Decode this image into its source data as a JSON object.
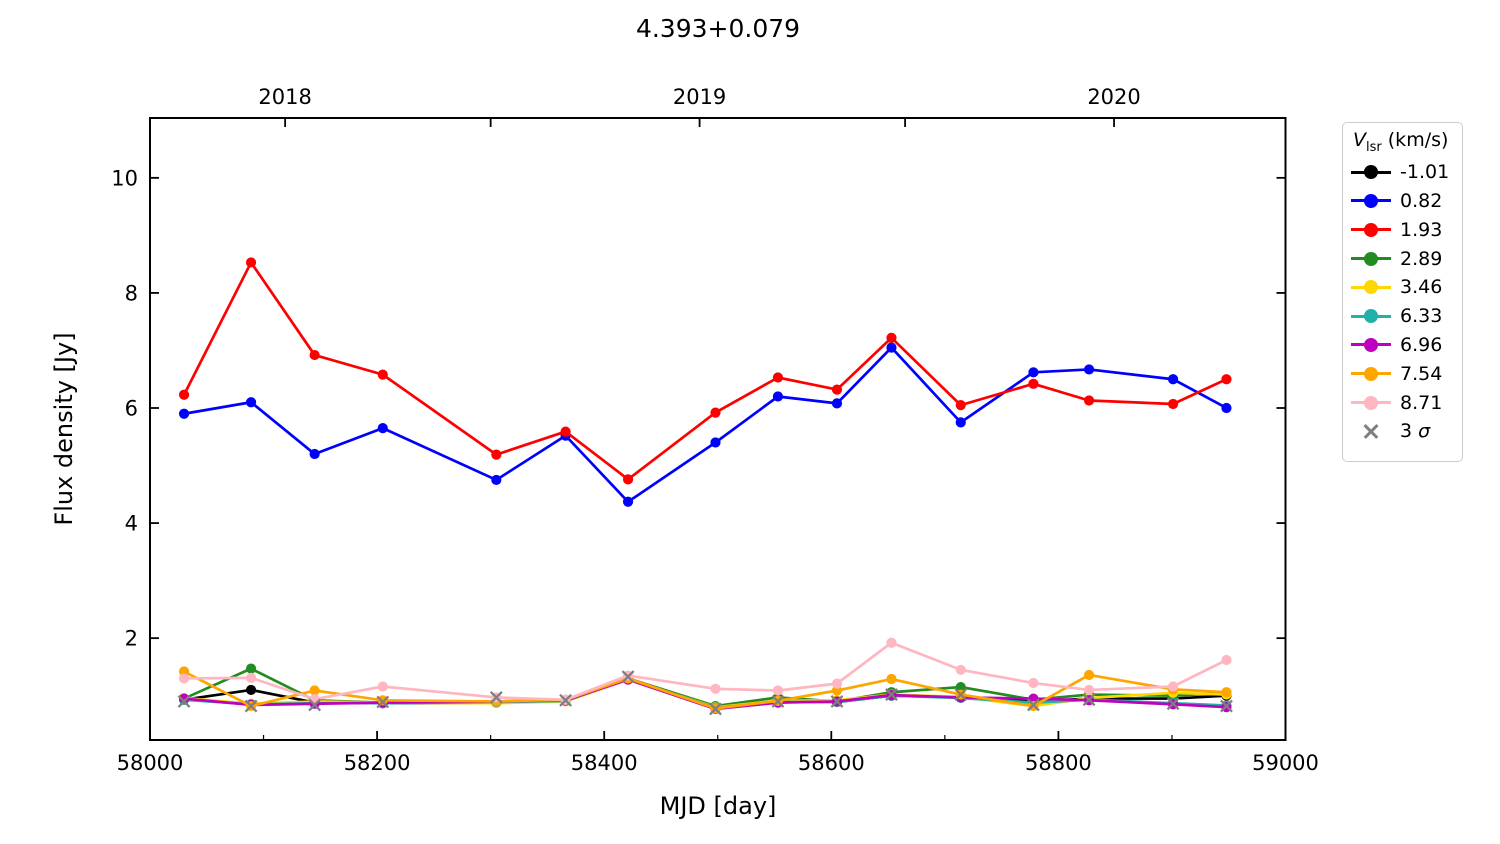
{
  "chart_data": {
    "type": "line",
    "title": "4.393+0.079",
    "xlabel": "MJD [day]",
    "ylabel": "Flux density [Jy]",
    "xlim": [
      58000,
      59000
    ],
    "ylim": [
      0.23,
      11.04
    ],
    "grid": false,
    "x_ticks_major": [
      58000,
      58200,
      58400,
      58600,
      58800,
      59000
    ],
    "x_ticks_minor": [
      58100,
      58300,
      58500,
      58700,
      58900
    ],
    "y_ticks_major": [
      2,
      4,
      6,
      8,
      10
    ],
    "top_axis": {
      "ticks_mjd": [
        58119,
        58300,
        58484,
        58665,
        58849
      ],
      "year_labels": [
        {
          "label": "2018",
          "mjd": 58119
        },
        {
          "label": "2019",
          "mjd": 58484
        },
        {
          "label": "2020",
          "mjd": 58849
        }
      ]
    },
    "x": [
      58030,
      58089,
      58145,
      58205,
      58305,
      58366,
      58421,
      58498,
      58553,
      58605,
      58653,
      58714,
      58778,
      58827,
      58901,
      58948
    ],
    "series": [
      {
        "name": "-1.01",
        "color": "#000000",
        "marker": "circle",
        "show_line": true,
        "values": [
          0.93,
          1.1,
          0.88,
          0.87,
          0.88,
          0.91,
          1.3,
          0.79,
          0.9,
          0.89,
          1.0,
          0.97,
          0.9,
          0.95,
          0.95,
          1.0
        ]
      },
      {
        "name": "0.82",
        "color": "#0000ff",
        "marker": "circle",
        "show_line": true,
        "values": [
          5.9,
          6.1,
          5.2,
          5.65,
          4.75,
          5.52,
          4.37,
          5.4,
          6.2,
          6.08,
          7.05,
          5.75,
          6.62,
          6.67,
          6.5,
          6.0
        ]
      },
      {
        "name": "1.93",
        "color": "#ff0000",
        "marker": "circle",
        "show_line": true,
        "values": [
          6.23,
          8.53,
          6.92,
          6.58,
          5.19,
          5.59,
          4.76,
          5.92,
          6.53,
          6.32,
          7.22,
          6.05,
          6.42,
          6.13,
          6.07,
          6.5
        ]
      },
      {
        "name": "2.89",
        "color": "#228b22",
        "marker": "circle",
        "show_line": true,
        "values": [
          0.95,
          1.47,
          0.92,
          0.88,
          0.88,
          0.92,
          1.3,
          0.82,
          0.97,
          0.9,
          1.06,
          1.15,
          0.93,
          1.02,
          1.0,
          1.05
        ]
      },
      {
        "name": "3.46",
        "color": "#ffd700",
        "marker": "circle",
        "show_line": true,
        "values": [
          0.96,
          0.86,
          0.9,
          0.88,
          0.87,
          0.9,
          1.28,
          0.8,
          0.91,
          0.92,
          1.02,
          0.98,
          0.82,
          0.96,
          1.05,
          1.02
        ]
      },
      {
        "name": "6.33",
        "color": "#20b2aa",
        "marker": "circle",
        "show_line": true,
        "values": [
          0.93,
          0.85,
          0.87,
          0.87,
          0.89,
          0.91,
          1.29,
          0.79,
          0.89,
          0.89,
          1.0,
          0.96,
          0.88,
          0.93,
          0.87,
          0.83
        ]
      },
      {
        "name": "6.96",
        "color": "#bf00bf",
        "marker": "circle",
        "show_line": true,
        "values": [
          0.95,
          0.84,
          0.86,
          0.88,
          0.9,
          0.92,
          1.28,
          0.77,
          0.88,
          0.9,
          1.01,
          0.97,
          0.95,
          0.92,
          0.85,
          0.8
        ]
      },
      {
        "name": "7.54",
        "color": "#ffa500",
        "marker": "circle",
        "show_line": true,
        "values": [
          1.42,
          0.82,
          1.09,
          0.92,
          0.9,
          0.93,
          1.3,
          0.78,
          0.91,
          1.09,
          1.29,
          1.02,
          0.82,
          1.36,
          1.11,
          1.06
        ]
      },
      {
        "name": "8.71",
        "color": "#ffb6c1",
        "marker": "circle",
        "show_line": true,
        "values": [
          1.3,
          1.31,
          0.94,
          1.16,
          0.97,
          0.93,
          1.35,
          1.12,
          1.09,
          1.21,
          1.92,
          1.45,
          1.22,
          1.1,
          1.16,
          1.62
        ]
      },
      {
        "name": "3 σ",
        "color": "#7f7f7f",
        "marker": "x",
        "show_line": false,
        "values": [
          0.9,
          0.82,
          0.84,
          0.89,
          0.97,
          0.92,
          1.33,
          0.77,
          0.9,
          0.9,
          1.02,
          1.02,
          0.84,
          0.93,
          0.86,
          0.82
        ]
      }
    ],
    "legend": {
      "title_italic": "V",
      "title_sub": "lsr",
      "title_rest": " (km/s)",
      "position": "outside-right"
    }
  }
}
